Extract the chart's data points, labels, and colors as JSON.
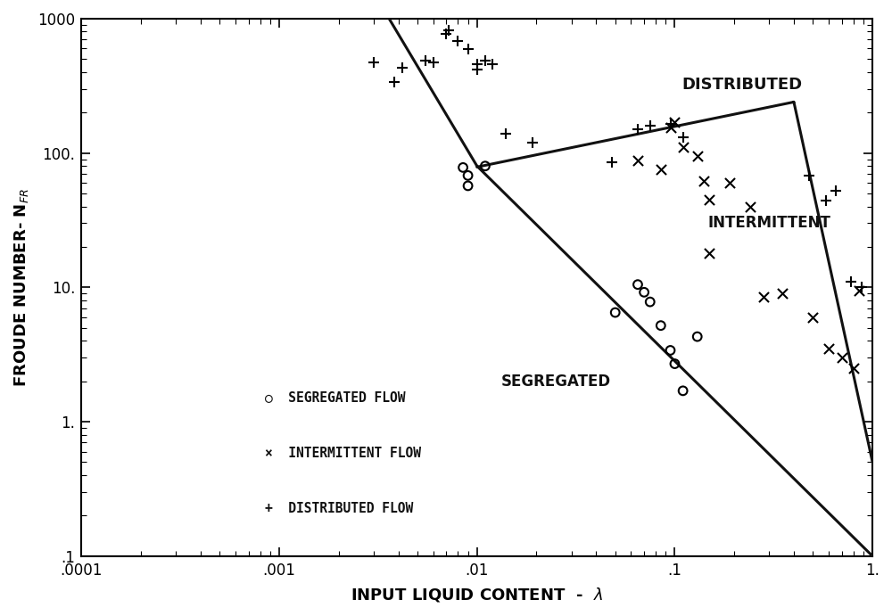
{
  "title": "",
  "xlabel": "INPUT LIQUID CONTENT  -  λ",
  "ylabel": "FROUDE NUMBER- N$_{FR}$",
  "xlim": [
    0.0001,
    1.0
  ],
  "ylim": [
    0.1,
    1000
  ],
  "background_color": "#ffffff",
  "curve_color": "#111111",
  "text_color": "#111111",
  "segregated_points": [
    [
      0.0085,
      78
    ],
    [
      0.009,
      68
    ],
    [
      0.009,
      57
    ],
    [
      0.011,
      80
    ],
    [
      0.05,
      6.5
    ],
    [
      0.065,
      10.5
    ],
    [
      0.07,
      9.2
    ],
    [
      0.075,
      7.8
    ],
    [
      0.085,
      5.2
    ],
    [
      0.095,
      3.4
    ],
    [
      0.1,
      2.7
    ],
    [
      0.11,
      1.7
    ],
    [
      0.13,
      4.3
    ]
  ],
  "intermittent_points": [
    [
      0.065,
      88
    ],
    [
      0.085,
      75
    ],
    [
      0.095,
      155
    ],
    [
      0.1,
      170
    ],
    [
      0.11,
      110
    ],
    [
      0.13,
      95
    ],
    [
      0.14,
      62
    ],
    [
      0.15,
      45
    ],
    [
      0.15,
      18
    ],
    [
      0.19,
      60
    ],
    [
      0.24,
      40
    ],
    [
      0.28,
      8.5
    ],
    [
      0.35,
      9.0
    ],
    [
      0.5,
      6.0
    ],
    [
      0.6,
      3.5
    ],
    [
      0.7,
      3.0
    ],
    [
      0.8,
      2.5
    ],
    [
      0.85,
      9.5
    ]
  ],
  "distributed_points": [
    [
      0.003,
      470
    ],
    [
      0.0038,
      340
    ],
    [
      0.0042,
      430
    ],
    [
      0.0055,
      490
    ],
    [
      0.006,
      470
    ],
    [
      0.007,
      770
    ],
    [
      0.0072,
      820
    ],
    [
      0.008,
      680
    ],
    [
      0.009,
      590
    ],
    [
      0.01,
      460
    ],
    [
      0.01,
      420
    ],
    [
      0.011,
      490
    ],
    [
      0.012,
      460
    ],
    [
      0.014,
      140
    ],
    [
      0.019,
      120
    ],
    [
      0.048,
      85
    ],
    [
      0.065,
      150
    ],
    [
      0.075,
      160
    ],
    [
      0.095,
      165
    ],
    [
      0.11,
      130
    ],
    [
      0.48,
      68
    ],
    [
      0.58,
      44
    ],
    [
      0.65,
      52
    ],
    [
      0.78,
      11
    ],
    [
      0.88,
      10
    ]
  ]
}
